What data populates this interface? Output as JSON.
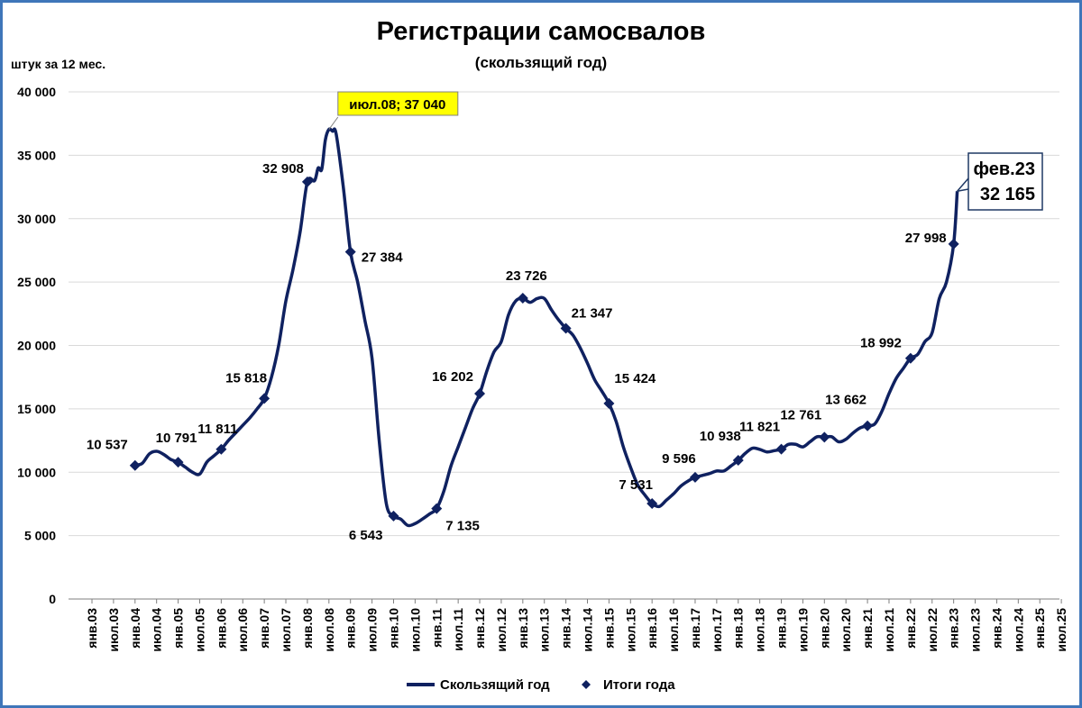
{
  "chart_data": {
    "type": "line",
    "title": "Регистрации самосвалов",
    "subtitle": "(скользящий год)",
    "ylabel": "штук за 12 мес.",
    "ylim": [
      0,
      40000
    ],
    "yticks": [
      0,
      5000,
      10000,
      15000,
      20000,
      25000,
      30000,
      35000,
      40000
    ],
    "ytick_labels": [
      "0",
      "5 000",
      "10 000",
      "15 000",
      "20 000",
      "25 000",
      "30 000",
      "35 000",
      "40 000"
    ],
    "x_start": "янв.03",
    "x_tick_labels": [
      "янв.03",
      "июл.03",
      "янв.04",
      "июл.04",
      "янв.05",
      "июл.05",
      "янв.06",
      "июл.06",
      "янв.07",
      "июл.07",
      "янв.08",
      "июл.08",
      "янв.09",
      "июл.09",
      "янв.10",
      "июл.10",
      "янв.11",
      "июл.11",
      "янв.12",
      "июл.12",
      "янв.13",
      "июл.13",
      "янв.14",
      "июл.14",
      "янв.15",
      "июл.15",
      "янв.16",
      "июл.16",
      "янв.17",
      "июл.17",
      "янв.18",
      "июл.18",
      "янв.19",
      "июл.19",
      "янв.20",
      "июл.20",
      "янв.21",
      "июл.21",
      "янв.22",
      "июл.22",
      "янв.23",
      "июл.23",
      "янв.24",
      "июл.24",
      "янв.25",
      "июл.25"
    ],
    "grid": true,
    "legend_position": "bottom",
    "series": [
      {
        "name": "Скользящий год",
        "color": "#0f2160",
        "points": [
          [
            "янв.04",
            10537
          ],
          [
            "мар.04",
            10700
          ],
          [
            "май.04",
            11450
          ],
          [
            "июл.04",
            11650
          ],
          [
            "сен.04",
            11400
          ],
          [
            "ноя.04",
            11000
          ],
          [
            "янв.05",
            10791
          ],
          [
            "мар.05",
            10400
          ],
          [
            "май.05",
            10000
          ],
          [
            "июл.05",
            9850
          ],
          [
            "сен.05",
            10800
          ],
          [
            "ноя.05",
            11300
          ],
          [
            "янв.06",
            11811
          ],
          [
            "мар.06",
            12500
          ],
          [
            "май.06",
            13100
          ],
          [
            "июл.06",
            13700
          ],
          [
            "сен.06",
            14300
          ],
          [
            "ноя.06",
            15000
          ],
          [
            "янв.07",
            15818
          ],
          [
            "мар.07",
            17500
          ],
          [
            "май.07",
            20000
          ],
          [
            "июл.07",
            23500
          ],
          [
            "сен.07",
            26000
          ],
          [
            "ноя.07",
            29000
          ],
          [
            "янв.08",
            32908
          ],
          [
            "мар.08",
            33000
          ],
          [
            "апр.08",
            34000
          ],
          [
            "май.08",
            33900
          ],
          [
            "июн.08",
            36200
          ],
          [
            "июл.08",
            37040
          ],
          [
            "авг.08",
            36900
          ],
          [
            "сен.08",
            36700
          ],
          [
            "ноя.08",
            32500
          ],
          [
            "янв.09",
            27384
          ],
          [
            "мар.09",
            25000
          ],
          [
            "май.09",
            22000
          ],
          [
            "июл.09",
            19000
          ],
          [
            "сен.09",
            12500
          ],
          [
            "ноя.09",
            7500
          ],
          [
            "янв.10",
            6543
          ],
          [
            "мар.10",
            6300
          ],
          [
            "май.10",
            5800
          ],
          [
            "июл.10",
            5950
          ],
          [
            "сен.10",
            6300
          ],
          [
            "ноя.10",
            6700
          ],
          [
            "янв.11",
            7135
          ],
          [
            "мар.11",
            8500
          ],
          [
            "май.11",
            10500
          ],
          [
            "июл.11",
            12000
          ],
          [
            "сен.11",
            13500
          ],
          [
            "ноя.11",
            15000
          ],
          [
            "янв.12",
            16202
          ],
          [
            "мар.12",
            18000
          ],
          [
            "май.12",
            19500
          ],
          [
            "июл.12",
            20300
          ],
          [
            "сен.12",
            22400
          ],
          [
            "ноя.12",
            23500
          ],
          [
            "янв.13",
            23726
          ],
          [
            "мар.13",
            23400
          ],
          [
            "май.13",
            23700
          ],
          [
            "июл.13",
            23700
          ],
          [
            "сен.13",
            22800
          ],
          [
            "ноя.13",
            22000
          ],
          [
            "янв.14",
            21347
          ],
          [
            "мар.14",
            20800
          ],
          [
            "май.14",
            19800
          ],
          [
            "июл.14",
            18600
          ],
          [
            "сен.14",
            17300
          ],
          [
            "ноя.14",
            16400
          ],
          [
            "янв.15",
            15424
          ],
          [
            "мар.15",
            14000
          ],
          [
            "май.15",
            12000
          ],
          [
            "июл.15",
            10400
          ],
          [
            "сен.15",
            9000
          ],
          [
            "ноя.15",
            8200
          ],
          [
            "янв.16",
            7531
          ],
          [
            "мар.16",
            7300
          ],
          [
            "май.16",
            7800
          ],
          [
            "июл.16",
            8300
          ],
          [
            "сен.16",
            8900
          ],
          [
            "ноя.16",
            9300
          ],
          [
            "янв.17",
            9596
          ],
          [
            "мар.17",
            9750
          ],
          [
            "май.17",
            9900
          ],
          [
            "июл.17",
            10100
          ],
          [
            "сен.17",
            10100
          ],
          [
            "ноя.17",
            10500
          ],
          [
            "янв.18",
            10938
          ],
          [
            "мар.18",
            11500
          ],
          [
            "май.18",
            11900
          ],
          [
            "июл.18",
            11800
          ],
          [
            "сен.18",
            11600
          ],
          [
            "ноя.18",
            11700
          ],
          [
            "янв.19",
            11821
          ],
          [
            "мар.19",
            12200
          ],
          [
            "май.19",
            12200
          ],
          [
            "июл.19",
            12000
          ],
          [
            "сен.19",
            12400
          ],
          [
            "ноя.19",
            12800
          ],
          [
            "янв.20",
            12761
          ],
          [
            "мар.20",
            12800
          ],
          [
            "май.20",
            12400
          ],
          [
            "июл.20",
            12600
          ],
          [
            "сен.20",
            13100
          ],
          [
            "ноя.20",
            13500
          ],
          [
            "янв.21",
            13662
          ],
          [
            "мар.21",
            13800
          ],
          [
            "май.21",
            14800
          ],
          [
            "июл.21",
            16200
          ],
          [
            "сен.21",
            17400
          ],
          [
            "ноя.21",
            18200
          ],
          [
            "янв.22",
            18992
          ],
          [
            "мар.22",
            19300
          ],
          [
            "май.22",
            20300
          ],
          [
            "июл.22",
            21000
          ],
          [
            "сен.22",
            23700
          ],
          [
            "ноя.22",
            25000
          ],
          [
            "янв.23",
            27998
          ],
          [
            "фев.23",
            32165
          ]
        ]
      },
      {
        "name": "Итоги года",
        "color": "#0f2160",
        "marker": "diamond",
        "points": [
          [
            "янв.04",
            10537
          ],
          [
            "янв.05",
            10791
          ],
          [
            "янв.06",
            11811
          ],
          [
            "янв.07",
            15818
          ],
          [
            "янв.08",
            32908
          ],
          [
            "янв.09",
            27384
          ],
          [
            "янв.10",
            6543
          ],
          [
            "янв.11",
            7135
          ],
          [
            "янв.12",
            16202
          ],
          [
            "янв.13",
            23726
          ],
          [
            "янв.14",
            21347
          ],
          [
            "янв.15",
            15424
          ],
          [
            "янв.16",
            7531
          ],
          [
            "янв.17",
            9596
          ],
          [
            "янв.18",
            10938
          ],
          [
            "янв.19",
            11821
          ],
          [
            "янв.20",
            12761
          ],
          [
            "янв.21",
            13662
          ],
          [
            "янв.22",
            18992
          ],
          [
            "янв.23",
            27998
          ]
        ],
        "labels": [
          "10 537",
          "10 791",
          "11 811",
          "15 818",
          "32 908",
          "27 384",
          "6 543",
          "7 135",
          "16 202",
          "23 726",
          "21 347",
          "15 424",
          "7 531",
          "9 596",
          "10 938",
          "11 821",
          "12 761",
          "13 662",
          "18 992",
          "27 998"
        ]
      }
    ],
    "annotations": [
      {
        "point": [
          "июл.08",
          37040
        ],
        "text": "июл.08;  37 040",
        "background": "#ffff00"
      },
      {
        "point": [
          "фев.23",
          32165
        ],
        "text_lines": [
          "фев.23",
          "32 165"
        ],
        "background": "#ffffff"
      }
    ]
  }
}
